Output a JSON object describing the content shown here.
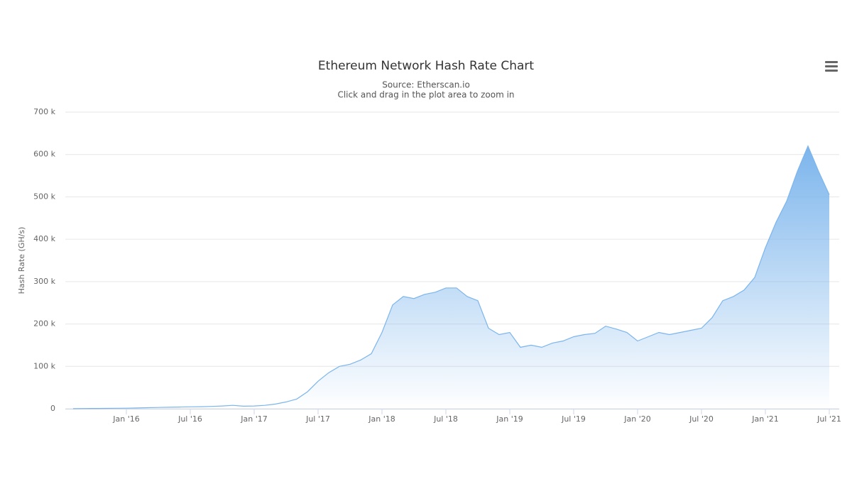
{
  "chart_data": {
    "type": "area",
    "title": "Ethereum Network Hash Rate Chart",
    "subtitle": [
      "Source: Etherscan.io",
      "Click and drag in the plot area to zoom in"
    ],
    "y_label": "Hash Rate (GH/s)",
    "color": "#7cb5ec",
    "grid": true,
    "x": [
      "2015-08",
      "2015-09",
      "2015-10",
      "2015-11",
      "2015-12",
      "2016-01",
      "2016-02",
      "2016-03",
      "2016-04",
      "2016-05",
      "2016-06",
      "2016-07",
      "2016-08",
      "2016-09",
      "2016-10",
      "2016-11",
      "2016-12",
      "2017-01",
      "2017-02",
      "2017-03",
      "2017-04",
      "2017-05",
      "2017-06",
      "2017-07",
      "2017-08",
      "2017-09",
      "2017-10",
      "2017-11",
      "2017-12",
      "2018-01",
      "2018-02",
      "2018-03",
      "2018-04",
      "2018-05",
      "2018-06",
      "2018-07",
      "2018-08",
      "2018-09",
      "2018-10",
      "2018-11",
      "2018-12",
      "2019-01",
      "2019-02",
      "2019-03",
      "2019-04",
      "2019-05",
      "2019-06",
      "2019-07",
      "2019-08",
      "2019-09",
      "2019-10",
      "2019-11",
      "2019-12",
      "2020-01",
      "2020-02",
      "2020-03",
      "2020-04",
      "2020-05",
      "2020-06",
      "2020-07",
      "2020-08",
      "2020-09",
      "2020-10",
      "2020-11",
      "2020-12",
      "2021-01",
      "2021-02",
      "2021-03",
      "2021-04",
      "2021-05",
      "2021-06",
      "2021-07"
    ],
    "values": [
      100,
      500,
      700,
      900,
      1100,
      1300,
      1800,
      2500,
      3000,
      3500,
      4000,
      4500,
      4800,
      5500,
      6500,
      8000,
      6000,
      6500,
      8000,
      11000,
      16000,
      23000,
      40000,
      65000,
      85000,
      100000,
      105000,
      115000,
      130000,
      180000,
      245000,
      265000,
      260000,
      270000,
      275000,
      285000,
      285000,
      265000,
      255000,
      190000,
      175000,
      180000,
      145000,
      150000,
      145000,
      155000,
      160000,
      170000,
      175000,
      178000,
      195000,
      188000,
      180000,
      160000,
      170000,
      180000,
      175000,
      180000,
      185000,
      190000,
      215000,
      255000,
      265000,
      280000,
      310000,
      380000,
      440000,
      490000,
      560000,
      620000,
      560000,
      505000
    ],
    "ylim": [
      0,
      700000
    ],
    "yticks": [
      {
        "value": 0,
        "label": "0"
      },
      {
        "value": 100000,
        "label": "100 k"
      },
      {
        "value": 200000,
        "label": "200 k"
      },
      {
        "value": 300000,
        "label": "300 k"
      },
      {
        "value": 400000,
        "label": "400 k"
      },
      {
        "value": 500000,
        "label": "500 k"
      },
      {
        "value": 600000,
        "label": "600 k"
      },
      {
        "value": 700000,
        "label": "700 k"
      }
    ],
    "xticks": [
      {
        "value": "2016-01",
        "label": "Jan '16"
      },
      {
        "value": "2016-07",
        "label": "Jul '16"
      },
      {
        "value": "2017-01",
        "label": "Jan '17"
      },
      {
        "value": "2017-07",
        "label": "Jul '17"
      },
      {
        "value": "2018-01",
        "label": "Jan '18"
      },
      {
        "value": "2018-07",
        "label": "Jul '18"
      },
      {
        "value": "2019-01",
        "label": "Jan '19"
      },
      {
        "value": "2019-07",
        "label": "Jul '19"
      },
      {
        "value": "2020-01",
        "label": "Jan '20"
      },
      {
        "value": "2020-07",
        "label": "Jul '20"
      },
      {
        "value": "2021-01",
        "label": "Jan '21"
      },
      {
        "value": "2021-07",
        "label": "Jul '21"
      }
    ]
  }
}
